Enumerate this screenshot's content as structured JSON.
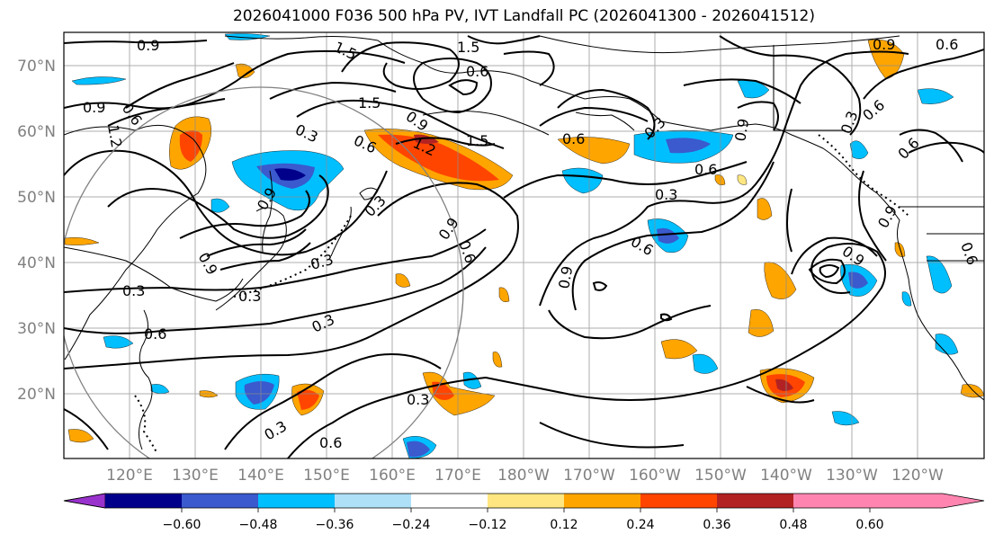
{
  "title": "2026041000 F036 500 hPa PV, IVT Landfall PC (2026041300 - 2026041512)",
  "lat_labels": [
    "70°N",
    "60°N",
    "50°N",
    "40°N",
    "30°N",
    "20°N"
  ],
  "lon_labels": [
    "120°E",
    "130°E",
    "140°E",
    "150°E",
    "160°E",
    "170°E",
    "180°W",
    "170°W",
    "160°W",
    "150°W",
    "140°W",
    "130°W",
    "120°W"
  ],
  "colorbar": {
    "colors": [
      "#9932cc",
      "#00008b",
      "#3a5acd",
      "#00bfff",
      "#aee0f8",
      "#ffffff",
      "#ffe680",
      "#ffa500",
      "#ff4500",
      "#b22222",
      "#ff85b0"
    ],
    "tick_labels": [
      "−0.60",
      "−0.48",
      "−0.36",
      "−0.24",
      "−0.12",
      "0.12",
      "0.24",
      "0.36",
      "0.48",
      "0.60"
    ]
  },
  "contour_labels": [
    "0.9",
    "1.5",
    "1.5",
    "0.6",
    "1.5",
    "0.9",
    "0.6",
    "1.2",
    "0.3",
    "0.6",
    "0.9",
    "1.2",
    "1.5",
    "0.6",
    "0.3",
    "0.6",
    "0.3",
    "0.6",
    "0.9",
    "0.6",
    "0.3",
    "0.6",
    "0.9",
    "0.6",
    "0.9",
    "0.3",
    "0.3",
    "0.3",
    "0.6",
    "0.3",
    "0.3",
    "0.3",
    "0.6",
    "0.9",
    "0.9",
    "0.3",
    "0.6",
    "0.9",
    "0.9",
    "0.6",
    "0.9"
  ]
}
